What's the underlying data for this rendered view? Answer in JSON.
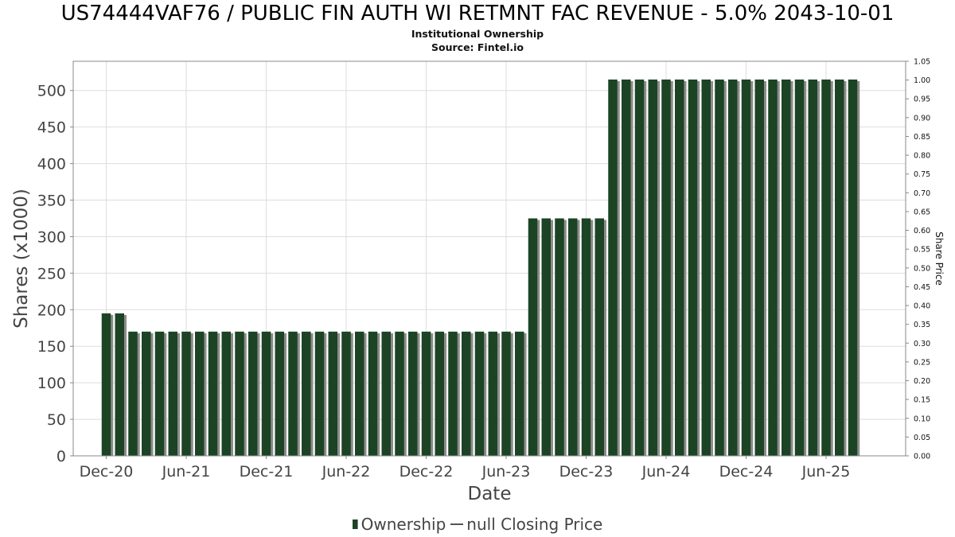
{
  "header": {
    "title": "US74444VAF76 / PUBLIC FIN AUTH WI RETMNT FAC REVENUE - 5.0% 2043-10-01",
    "subtitle_line1": "Institutional Ownership",
    "subtitle_line2": "Source: Fintel.io"
  },
  "legend": {
    "ownership_label": "Ownership",
    "price_label": "null Closing Price"
  },
  "colors": {
    "bar": "#1c4424",
    "bar_shadow": "#8c8c8c",
    "grid": "#dddddd",
    "axis": "#888888"
  },
  "chart_data": {
    "type": "bar",
    "title": "US74444VAF76 / PUBLIC FIN AUTH WI RETMNT FAC REVENUE - 5.0% 2043-10-01",
    "xlabel": "Date",
    "ylabel": "Shares (x1000)",
    "y2label": "Share Price",
    "ylim": [
      0,
      540
    ],
    "y2lim": [
      0,
      1.05
    ],
    "yticks": [
      0,
      50,
      100,
      150,
      200,
      250,
      300,
      350,
      400,
      450,
      500
    ],
    "y2ticks": [
      "0.00",
      "0.05",
      "0.10",
      "0.15",
      "0.20",
      "0.25",
      "0.30",
      "0.35",
      "0.40",
      "0.45",
      "0.50",
      "0.55",
      "0.60",
      "0.65",
      "0.70",
      "0.75",
      "0.80",
      "0.85",
      "0.90",
      "0.95",
      "1.00",
      "1.05"
    ],
    "xticks": [
      "Dec-20",
      "Jun-21",
      "Dec-21",
      "Jun-22",
      "Dec-22",
      "Jun-23",
      "Dec-23",
      "Jun-24",
      "Dec-24",
      "Jun-25"
    ],
    "x_start": "2020-10",
    "grid": true,
    "legend_position": "bottom",
    "series": [
      {
        "name": "Ownership",
        "x": [
          "2020-12",
          "2021-01",
          "2021-02",
          "2021-03",
          "2021-04",
          "2021-05",
          "2021-06",
          "2021-07",
          "2021-08",
          "2021-09",
          "2021-10",
          "2021-11",
          "2021-12",
          "2022-01",
          "2022-02",
          "2022-03",
          "2022-04",
          "2022-05",
          "2022-06",
          "2022-07",
          "2022-08",
          "2022-09",
          "2022-10",
          "2022-11",
          "2022-12",
          "2023-01",
          "2023-02",
          "2023-03",
          "2023-04",
          "2023-05",
          "2023-06",
          "2023-07",
          "2023-08",
          "2023-09",
          "2023-10",
          "2023-11",
          "2023-12",
          "2024-01",
          "2024-02",
          "2024-03",
          "2024-04",
          "2024-05",
          "2024-06",
          "2024-07",
          "2024-08",
          "2024-09",
          "2024-10",
          "2024-11",
          "2024-12",
          "2025-01",
          "2025-02",
          "2025-03",
          "2025-04",
          "2025-05",
          "2025-06",
          "2025-07",
          "2025-08"
        ],
        "values": [
          195,
          195,
          170,
          170,
          170,
          170,
          170,
          170,
          170,
          170,
          170,
          170,
          170,
          170,
          170,
          170,
          170,
          170,
          170,
          170,
          170,
          170,
          170,
          170,
          170,
          170,
          170,
          170,
          170,
          170,
          170,
          170,
          325,
          325,
          325,
          325,
          325,
          325,
          515,
          515,
          515,
          515,
          515,
          515,
          515,
          515,
          515,
          515,
          515,
          515,
          515,
          515,
          515,
          515,
          515,
          515,
          515
        ]
      },
      {
        "name": "null Closing Price",
        "values": []
      }
    ]
  }
}
